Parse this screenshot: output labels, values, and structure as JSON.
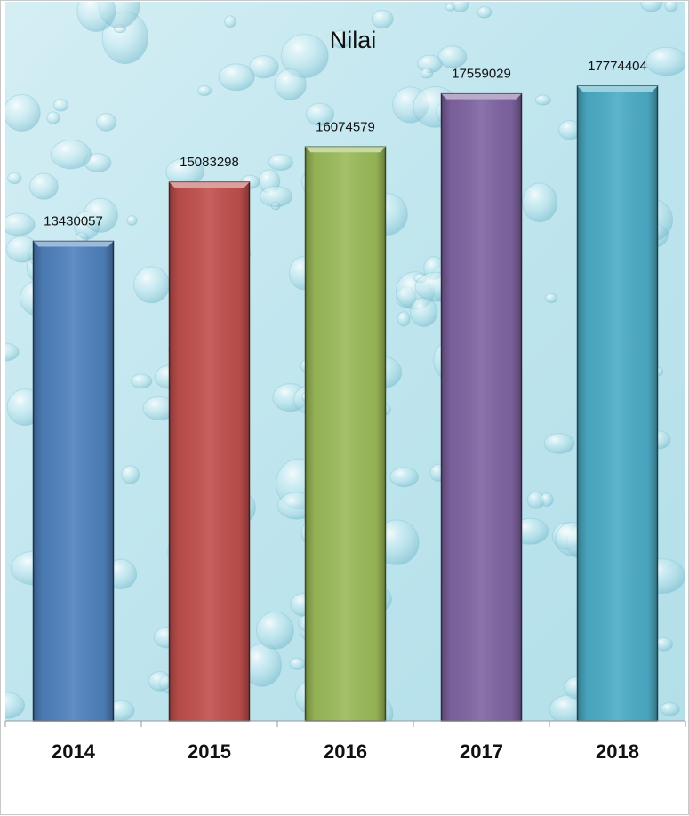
{
  "chart_data": {
    "type": "bar",
    "title": "Nilai",
    "xlabel": "",
    "ylabel": "",
    "categories": [
      "2014",
      "2015",
      "2016",
      "2017",
      "2018"
    ],
    "values": [
      13430057,
      15083298,
      16074579,
      17559029,
      17774404
    ],
    "value_labels": [
      "13430057",
      "15083298",
      "16074579",
      "17559029",
      "17774404"
    ],
    "ylim": [
      0,
      20000000
    ],
    "grid": false,
    "legend": "none",
    "colors": [
      "#4f81bd",
      "#c0504d",
      "#9bbb59",
      "#8064a2",
      "#4bacc6"
    ],
    "background": "water-droplet-texture"
  }
}
